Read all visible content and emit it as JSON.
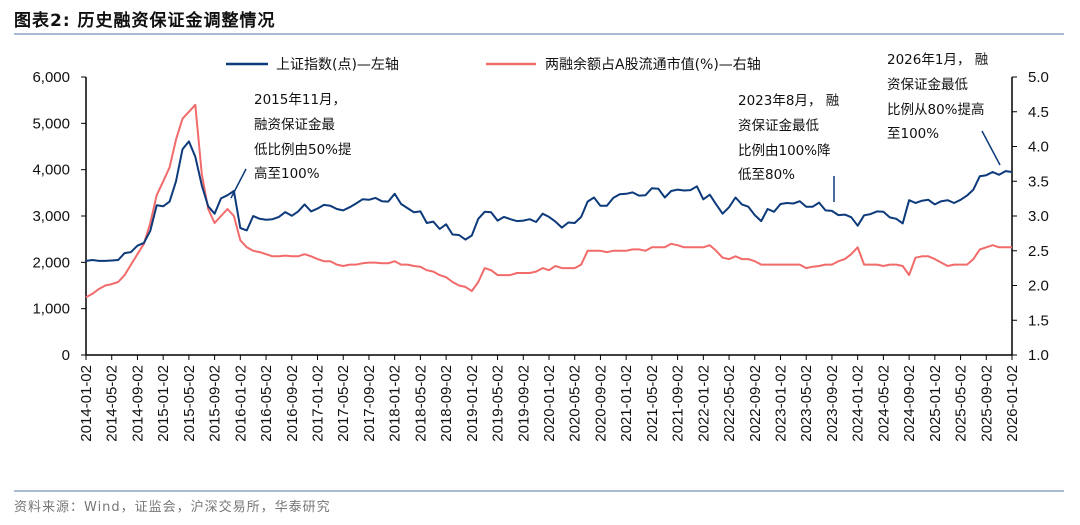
{
  "title": "图表2:   历史融资保证金调整情况",
  "source": "资料来源：Wind，证监会，沪深交易所，华泰研究",
  "chart_data": {
    "type": "line",
    "title": "历史融资保证金调整情况",
    "x_start": "2014-01",
    "x_end": "2026-01",
    "x_tick_labels": [
      "2014-01-02",
      "2014-05-02",
      "2014-09-02",
      "2015-01-02",
      "2015-05-02",
      "2015-09-02",
      "2016-01-02",
      "2016-05-02",
      "2016-09-02",
      "2017-01-02",
      "2017-05-02",
      "2017-09-02",
      "2018-01-02",
      "2018-05-02",
      "2018-09-02",
      "2019-01-02",
      "2019-05-02",
      "2019-09-02",
      "2020-01-02",
      "2020-05-02",
      "2020-09-02",
      "2021-01-02",
      "2021-05-02",
      "2021-09-02",
      "2022-01-02",
      "2022-05-02",
      "2022-09-02",
      "2023-01-02",
      "2023-05-02",
      "2023-09-02",
      "2024-01-02",
      "2024-05-02",
      "2024-09-02",
      "2025-01-02",
      "2025-05-02",
      "2025-09-02",
      "2026-01-02"
    ],
    "y_left": {
      "range": [
        0,
        6000
      ],
      "ticks": [
        "0",
        "1,000",
        "2,000",
        "3,000",
        "4,000",
        "5,000",
        "6,000"
      ],
      "values": [
        0,
        1000,
        2000,
        3000,
        4000,
        5000,
        6000
      ]
    },
    "y_right": {
      "range": [
        1.0,
        5.0
      ],
      "ticks": [
        "1.0",
        "1.5",
        "2.0",
        "2.5",
        "3.0",
        "3.5",
        "4.0",
        "4.5",
        "5.0"
      ],
      "values": [
        1.0,
        1.5,
        2.0,
        2.5,
        3.0,
        3.5,
        4.0,
        4.5,
        5.0
      ]
    },
    "grid": false,
    "legend_placement": "top",
    "series": [
      {
        "name": "上证指数(点)—左轴",
        "axis": "left",
        "color": "#0d3a7a",
        "values": [
          2030,
          2050,
          2030,
          2030,
          2040,
          2050,
          2200,
          2220,
          2360,
          2420,
          2680,
          3230,
          3210,
          3310,
          3750,
          4440,
          4610,
          4280,
          3660,
          3210,
          3050,
          3380,
          3450,
          3540,
          2740,
          2690,
          3000,
          2940,
          2920,
          2930,
          2980,
          3085,
          3005,
          3100,
          3250,
          3100,
          3160,
          3240,
          3220,
          3150,
          3120,
          3190,
          3270,
          3360,
          3350,
          3390,
          3320,
          3310,
          3480,
          3260,
          3170,
          3080,
          3100,
          2850,
          2880,
          2720,
          2820,
          2600,
          2590,
          2490,
          2580,
          2940,
          3090,
          3080,
          2900,
          2980,
          2930,
          2890,
          2900,
          2930,
          2870,
          3050,
          2980,
          2880,
          2750,
          2860,
          2850,
          2980,
          3310,
          3400,
          3220,
          3220,
          3390,
          3470,
          3480,
          3510,
          3440,
          3450,
          3600,
          3590,
          3400,
          3540,
          3570,
          3550,
          3560,
          3640,
          3360,
          3460,
          3250,
          3050,
          3190,
          3400,
          3250,
          3200,
          3020,
          2890,
          3150,
          3090,
          3260,
          3280,
          3270,
          3320,
          3200,
          3200,
          3290,
          3120,
          3110,
          3020,
          3030,
          2975,
          2790,
          3015,
          3040,
          3100,
          3090,
          2970,
          2940,
          2840,
          3340,
          3280,
          3330,
          3350,
          3250,
          3320,
          3340,
          3280,
          3350,
          3440,
          3570,
          3860,
          3880,
          3950,
          3890,
          3970,
          3950
        ]
      },
      {
        "name": "两融余额占A股流通市值(%)—右轴",
        "axis": "right",
        "color": "#f26b6b",
        "values": [
          1.83,
          1.88,
          1.95,
          2.0,
          2.02,
          2.05,
          2.15,
          2.3,
          2.45,
          2.6,
          2.9,
          3.3,
          3.5,
          3.7,
          4.1,
          4.4,
          4.5,
          4.6,
          3.6,
          3.1,
          2.9,
          3.0,
          3.1,
          3.0,
          2.65,
          2.55,
          2.5,
          2.48,
          2.45,
          2.42,
          2.42,
          2.43,
          2.42,
          2.42,
          2.45,
          2.42,
          2.38,
          2.35,
          2.35,
          2.3,
          2.28,
          2.3,
          2.3,
          2.32,
          2.33,
          2.33,
          2.32,
          2.32,
          2.35,
          2.3,
          2.3,
          2.28,
          2.27,
          2.22,
          2.2,
          2.15,
          2.12,
          2.05,
          2.0,
          1.98,
          1.92,
          2.05,
          2.25,
          2.22,
          2.15,
          2.15,
          2.15,
          2.18,
          2.18,
          2.18,
          2.2,
          2.25,
          2.22,
          2.28,
          2.25,
          2.25,
          2.25,
          2.3,
          2.5,
          2.5,
          2.5,
          2.48,
          2.5,
          2.5,
          2.5,
          2.52,
          2.52,
          2.5,
          2.55,
          2.55,
          2.55,
          2.6,
          2.58,
          2.55,
          2.55,
          2.55,
          2.55,
          2.58,
          2.5,
          2.4,
          2.38,
          2.42,
          2.38,
          2.38,
          2.35,
          2.3,
          2.3,
          2.3,
          2.3,
          2.3,
          2.3,
          2.3,
          2.25,
          2.27,
          2.28,
          2.3,
          2.3,
          2.35,
          2.38,
          2.45,
          2.55,
          2.3,
          2.3,
          2.3,
          2.28,
          2.3,
          2.3,
          2.28,
          2.15,
          2.4,
          2.42,
          2.42,
          2.38,
          2.33,
          2.28,
          2.3,
          2.3,
          2.3,
          2.38,
          2.52,
          2.55,
          2.58,
          2.55,
          2.55,
          2.55
        ]
      }
    ],
    "annotations": [
      {
        "lines": [
          "2015年11月，",
          "融资保证金最",
          "低比例由50%提",
          "高至100%"
        ]
      },
      {
        "lines": [
          "2023年8月，  融",
          "资保证金最低",
          "比例由100%降",
          "低至80%"
        ]
      },
      {
        "lines": [
          "2026年1月，  融",
          "资保证金最低",
          "比例从80%提高",
          "至100%"
        ]
      }
    ]
  }
}
